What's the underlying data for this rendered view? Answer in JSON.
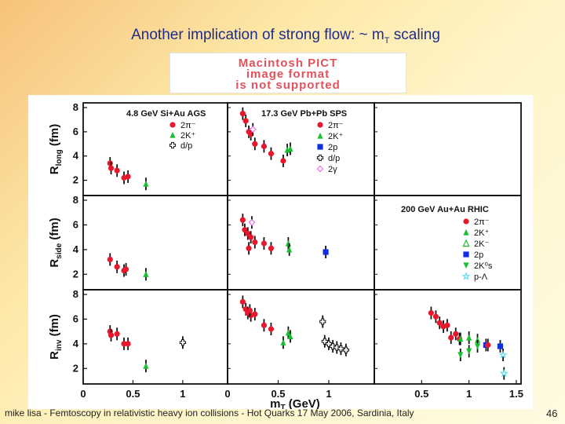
{
  "slide": {
    "title": "Another implication of strong flow: ~ m",
    "title_sub": "T",
    "title_tail": " scaling",
    "pict_lines": [
      "Macintosh PICT",
      "image format",
      "is not supported"
    ],
    "footer": "mike lisa - Femtoscopy in relativistic heavy ion collisions - Hot Quarks 17 May 2006, Sardinia, Italy",
    "page_number": "46"
  },
  "colors": {
    "red": "#e8182c",
    "green": "#18c030",
    "blue": "#1030e0",
    "magenta": "#f070f0",
    "cyan": "#50d8f0",
    "black": "#111111"
  },
  "chart_data": {
    "type": "scatter",
    "xlabel": "m",
    "xlabel_sub": "T",
    "xlabel_unit": " (GeV)",
    "ylim": [
      1,
      8
    ],
    "yticks": [
      2,
      4,
      6,
      8
    ],
    "row_ylabels": [
      {
        "main": "R",
        "sub": "long",
        "unit": " (fm)"
      },
      {
        "main": "R",
        "sub": "side",
        "unit": " (fm)"
      },
      {
        "main": "R",
        "sub": "inv",
        "unit": " (fm)"
      }
    ],
    "column_xticks": [
      {
        "ticks": [
          "0",
          "0.5",
          "1"
        ],
        "values": [
          0,
          0.5,
          1
        ]
      },
      {
        "ticks": [
          "0",
          "0.5",
          "1"
        ],
        "values": [
          0,
          0.5,
          1
        ]
      },
      {
        "ticks": [
          "0.5",
          "1",
          "1.5"
        ],
        "values": [
          0.5,
          1,
          1.5
        ]
      }
    ],
    "column_xlim": [
      [
        0,
        1.45
      ],
      [
        0,
        1.45
      ],
      [
        0,
        1.55
      ]
    ],
    "experiments": [
      {
        "title": "4.8 GeV Si+Au AGS",
        "legend": [
          {
            "label": "2π⁻",
            "shape": "circle",
            "color": "red"
          },
          {
            "label": "2K⁺",
            "shape": "triangle",
            "color": "green"
          },
          {
            "label": "d/p",
            "shape": "cross",
            "color": "black"
          }
        ]
      },
      {
        "title": "17.3 GeV Pb+Pb SPS",
        "legend": [
          {
            "label": "2π⁻",
            "shape": "circle",
            "color": "red"
          },
          {
            "label": "2K⁺",
            "shape": "triangle",
            "color": "green"
          },
          {
            "label": "2p",
            "shape": "square",
            "color": "blue"
          },
          {
            "label": "d/p",
            "shape": "cross",
            "color": "black"
          },
          {
            "label": "2γ",
            "shape": "diamond",
            "color": "magenta"
          }
        ]
      },
      {
        "title": "200 GeV Au+Au RHIC",
        "legend": [
          {
            "label": "2π⁻",
            "shape": "circle",
            "color": "red"
          },
          {
            "label": "2K⁺",
            "shape": "triangle",
            "color": "green"
          },
          {
            "label": "2K⁻",
            "shape": "triangle-open",
            "color": "green"
          },
          {
            "label": "2p",
            "shape": "square",
            "color": "blue"
          },
          {
            "label": "2K⁰s",
            "shape": "triangle-down",
            "color": "green"
          },
          {
            "label": "p-Λ",
            "shape": "star",
            "color": "cyan"
          }
        ]
      }
    ],
    "panels": [
      {
        "row": 0,
        "col": 0,
        "series": [
          {
            "shape": "circle",
            "color": "red",
            "points": [
              [
                0.27,
                3.4
              ],
              [
                0.28,
                3.0
              ],
              [
                0.34,
                2.8
              ],
              [
                0.41,
                2.2
              ],
              [
                0.45,
                2.3
              ]
            ]
          },
          {
            "shape": "triangle",
            "color": "green",
            "points": [
              [
                0.63,
                1.7
              ]
            ]
          }
        ]
      },
      {
        "row": 0,
        "col": 1,
        "series": [
          {
            "shape": "circle",
            "color": "red",
            "points": [
              [
                0.15,
                7.5
              ],
              [
                0.18,
                6.9
              ],
              [
                0.21,
                6.0
              ],
              [
                0.23,
                5.8
              ],
              [
                0.27,
                5.0
              ],
              [
                0.36,
                4.8
              ],
              [
                0.43,
                4.2
              ],
              [
                0.55,
                3.6
              ]
            ]
          },
          {
            "shape": "diamond",
            "color": "magenta",
            "points": [
              [
                0.25,
                6.2
              ]
            ]
          },
          {
            "shape": "triangle",
            "color": "green",
            "points": [
              [
                0.59,
                4.5
              ],
              [
                0.62,
                4.6
              ]
            ]
          }
        ]
      },
      {
        "row": 1,
        "col": 0,
        "series": [
          {
            "shape": "circle",
            "color": "red",
            "points": [
              [
                0.27,
                3.2
              ],
              [
                0.34,
                2.6
              ],
              [
                0.41,
                2.3
              ],
              [
                0.43,
                2.4
              ]
            ]
          },
          {
            "shape": "triangle",
            "color": "green",
            "points": [
              [
                0.63,
                2.0
              ]
            ]
          }
        ]
      },
      {
        "row": 1,
        "col": 1,
        "series": [
          {
            "shape": "circle",
            "color": "red",
            "points": [
              [
                0.15,
                6.4
              ],
              [
                0.17,
                5.6
              ],
              [
                0.2,
                5.3
              ],
              [
                0.23,
                5.0
              ],
              [
                0.27,
                4.6
              ],
              [
                0.36,
                4.5
              ],
              [
                0.43,
                4.1
              ],
              [
                0.21,
                4.1
              ]
            ]
          },
          {
            "shape": "diamond",
            "color": "magenta",
            "points": [
              [
                0.24,
                6.2
              ]
            ]
          },
          {
            "shape": "triangle",
            "color": "green",
            "points": [
              [
                0.6,
                4.5
              ],
              [
                0.61,
                4.0
              ]
            ]
          },
          {
            "shape": "square",
            "color": "blue",
            "points": [
              [
                0.97,
                3.8
              ]
            ]
          }
        ]
      },
      {
        "row": 2,
        "col": 0,
        "series": [
          {
            "shape": "circle",
            "color": "red",
            "points": [
              [
                0.27,
                5.0
              ],
              [
                0.28,
                4.7
              ],
              [
                0.34,
                4.8
              ],
              [
                0.41,
                4.0
              ],
              [
                0.45,
                4.0
              ]
            ]
          },
          {
            "shape": "triangle",
            "color": "green",
            "points": [
              [
                0.63,
                2.2
              ]
            ]
          },
          {
            "shape": "cross",
            "color": "black",
            "points": [
              [
                1.0,
                4.1
              ]
            ]
          }
        ]
      },
      {
        "row": 2,
        "col": 1,
        "series": [
          {
            "shape": "circle",
            "color": "red",
            "points": [
              [
                0.15,
                7.4
              ],
              [
                0.18,
                6.8
              ],
              [
                0.2,
                6.5
              ],
              [
                0.23,
                6.3
              ],
              [
                0.27,
                6.4
              ],
              [
                0.36,
                5.5
              ],
              [
                0.43,
                5.2
              ],
              [
                0.22,
                6.7
              ]
            ]
          },
          {
            "shape": "triangle",
            "color": "green",
            "points": [
              [
                0.6,
                4.9
              ],
              [
                0.62,
                4.6
              ],
              [
                0.55,
                4.1
              ]
            ]
          },
          {
            "shape": "cross",
            "color": "black",
            "points": [
              [
                0.94,
                5.8
              ],
              [
                0.96,
                4.2
              ],
              [
                1.0,
                4.0
              ],
              [
                1.04,
                3.8
              ],
              [
                1.08,
                3.7
              ],
              [
                1.12,
                3.6
              ],
              [
                1.17,
                3.5
              ]
            ]
          }
        ]
      },
      {
        "row": 2,
        "col": 2,
        "series": [
          {
            "shape": "circle",
            "color": "red",
            "points": [
              [
                0.6,
                6.5
              ],
              [
                0.65,
                6.2
              ],
              [
                0.69,
                5.7
              ],
              [
                0.73,
                5.4
              ],
              [
                0.77,
                5.5
              ],
              [
                0.81,
                4.5
              ],
              [
                0.86,
                4.8
              ],
              [
                0.9,
                4.4
              ]
            ]
          },
          {
            "shape": "triangle",
            "color": "green",
            "points": [
              [
                0.91,
                4.4
              ],
              [
                1.0,
                4.5
              ],
              [
                1.09,
                4.3
              ]
            ]
          },
          {
            "shape": "triangle-down",
            "color": "green",
            "points": [
              [
                0.91,
                3.1
              ],
              [
                1.0,
                3.4
              ],
              [
                1.09,
                3.8
              ]
            ]
          },
          {
            "shape": "square",
            "color": "blue",
            "points": [
              [
                1.18,
                3.9
              ],
              [
                1.33,
                3.8
              ]
            ]
          },
          {
            "shape": "circle",
            "color": "red",
            "points": [
              [
                1.2,
                3.9
              ]
            ]
          },
          {
            "shape": "star",
            "color": "cyan",
            "points": [
              [
                1.36,
                3.1
              ],
              [
                1.37,
                1.6
              ]
            ]
          }
        ]
      }
    ]
  }
}
